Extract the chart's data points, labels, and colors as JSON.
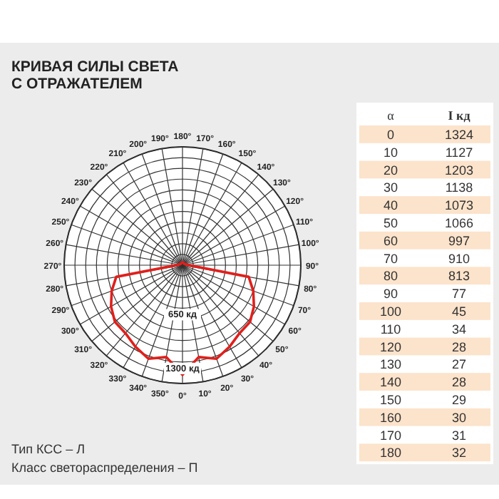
{
  "chart_data": {
    "type": "radar",
    "title": "КРИВАЯ СИЛЫ СВЕТА",
    "subtitle": "С ОТРАЖАТЕЛЕМ",
    "categories": [
      "180°",
      "170°",
      "160°",
      "150°",
      "140°",
      "130°",
      "120°",
      "110°",
      "100°",
      "90°",
      "80°",
      "70°",
      "60°",
      "50°",
      "40°",
      "30°",
      "20°",
      "10°",
      "0°",
      "350°",
      "340°",
      "330°",
      "320°",
      "310°",
      "300°",
      "290°",
      "280°",
      "270°",
      "260°",
      "250°",
      "240°",
      "230°",
      "220°",
      "210°",
      "200°",
      "190°"
    ],
    "series": [
      {
        "color": "#e0201c",
        "values": [
          32,
          31,
          30,
          29,
          28,
          27,
          28,
          34,
          45,
          77,
          813,
          910,
          997,
          1066,
          1073,
          1138,
          1203,
          1127,
          1324,
          1127,
          1203,
          1138,
          1073,
          1066,
          997,
          910,
          813,
          77,
          45,
          34,
          28,
          27,
          28,
          29,
          30,
          31
        ]
      }
    ],
    "ylim": [
      0,
      1430
    ],
    "yticks": [
      {
        "value": 650,
        "label": "650 кд"
      },
      {
        "value": 1300,
        "label": "1300 кд"
      }
    ],
    "grid": true,
    "annotations": [
      "Тип КСС – Л",
      "Класс светораспределения – П",
      "α",
      "I кд",
      "0",
      "1324",
      "10",
      "1127",
      "20",
      "1203",
      "30",
      "1138",
      "40",
      "1073",
      "50",
      "1066",
      "60",
      "997",
      "70",
      "910",
      "80",
      "813",
      "90",
      "77",
      "100",
      "45",
      "110",
      "34",
      "120",
      "28",
      "130",
      "27",
      "140",
      "28",
      "150",
      "29",
      "160",
      "30",
      "170",
      "31",
      "180",
      "32"
    ]
  }
}
